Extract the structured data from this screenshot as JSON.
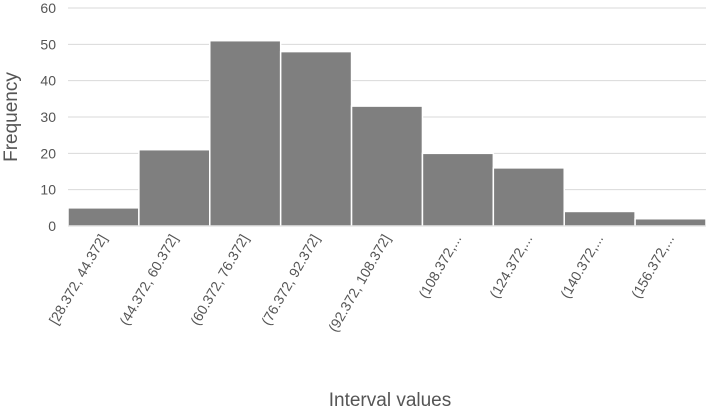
{
  "chart_data": {
    "type": "bar",
    "categories": [
      "[28.372, 44.372]",
      "(44.372, 60.372]",
      "(60.372, 76.372]",
      "(76.372, 92.372]",
      "(92.372, 108.372]",
      "(108.372,...",
      "(124.372,...",
      "(140.372,...",
      "(156.372,..."
    ],
    "values": [
      5,
      21,
      51,
      48,
      33,
      20,
      16,
      4,
      2
    ],
    "xlabel": "Interval values",
    "ylabel": "Frequency",
    "ylim": [
      0,
      60
    ],
    "yticks": [
      0,
      10,
      20,
      30,
      40,
      50,
      60
    ],
    "grid": true,
    "bar_color": "#7f7f7f"
  }
}
